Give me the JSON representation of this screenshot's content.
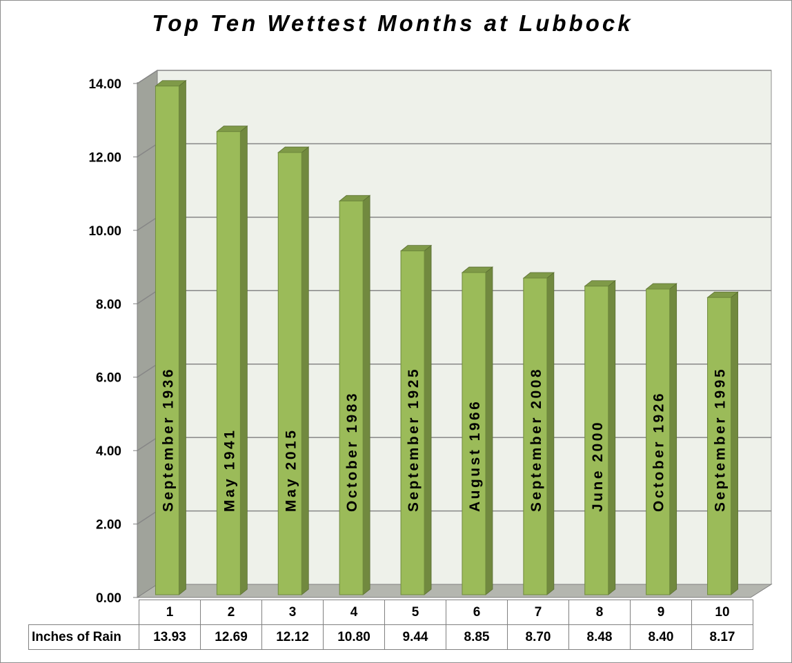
{
  "chart_data": {
    "type": "bar",
    "title": "Top Ten Wettest Months at Lubbock",
    "categories": [
      "1",
      "2",
      "3",
      "4",
      "5",
      "6",
      "7",
      "8",
      "9",
      "10"
    ],
    "bar_labels": [
      "September 1936",
      "May 1941",
      "May 2015",
      "October 1983",
      "September 1925",
      "August 1966",
      "September 2008",
      "June 2000",
      "October 1926",
      "September 1995"
    ],
    "series": [
      {
        "name": "Inches of Rain",
        "values": [
          13.93,
          12.69,
          12.12,
          10.8,
          9.44,
          8.85,
          8.7,
          8.48,
          8.4,
          8.17
        ],
        "display_values": [
          "13.93",
          "12.69",
          "12.12",
          "10.80",
          "9.44",
          "8.85",
          "8.70",
          "8.48",
          "8.40",
          "8.17"
        ]
      }
    ],
    "ylim": [
      0,
      14
    ],
    "yticks": [
      "0.00",
      "2.00",
      "4.00",
      "6.00",
      "8.00",
      "10.00",
      "12.00",
      "14.00"
    ],
    "grid": true,
    "three_d": true,
    "bar_color": "#9bbb59",
    "bar_side_color": "#71893f",
    "bar_top_color": "#7f9a48",
    "wall_color": "#eef1ea",
    "side_wall_color": "#a0a39b",
    "floor_color": "#b4b6af",
    "data_table": true
  }
}
